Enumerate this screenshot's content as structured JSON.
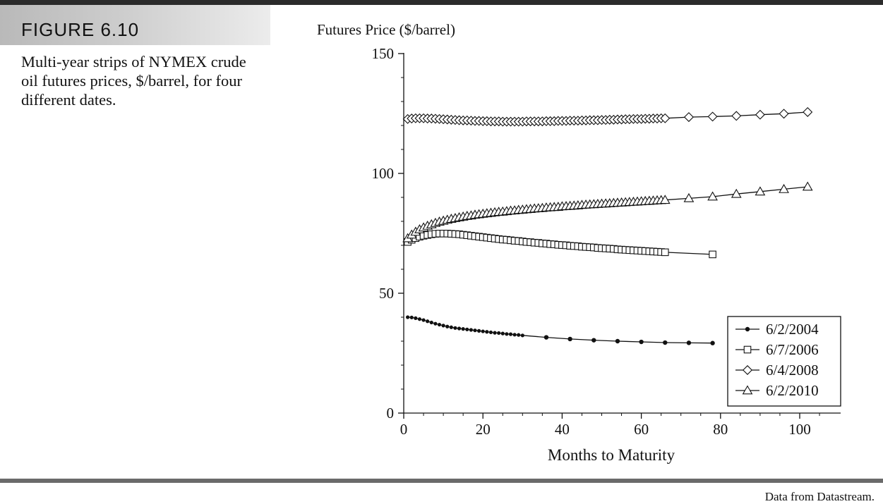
{
  "figure": {
    "label": "FIGURE 6.10",
    "caption": "Multi-year strips of NYMEX crude oil futures prices, $/barrel, for four different dates.",
    "source": "Data from Datastream."
  },
  "chart_data": {
    "type": "line",
    "ylabel": "Futures Price ($/barrel)",
    "xlabel": "Months to Maturity",
    "xlim": [
      0,
      110
    ],
    "ylim": [
      0,
      150
    ],
    "xticks": [
      0,
      20,
      40,
      60,
      80,
      100
    ],
    "yticks": [
      0,
      50,
      100,
      150
    ],
    "grid": false,
    "legend_position": "bottom-right",
    "series": [
      {
        "name": "6/2/2004",
        "marker": "filled-circle",
        "x": [
          1,
          2,
          3,
          4,
          5,
          6,
          7,
          8,
          9,
          10,
          11,
          12,
          13,
          14,
          15,
          16,
          17,
          18,
          19,
          20,
          21,
          22,
          23,
          24,
          25,
          26,
          27,
          28,
          29,
          30,
          36,
          42,
          48,
          54,
          60,
          66,
          72,
          78
        ],
        "y": [
          40.0,
          39.9,
          39.6,
          39.2,
          38.8,
          38.3,
          37.8,
          37.3,
          36.9,
          36.5,
          36.1,
          35.8,
          35.5,
          35.3,
          35.1,
          34.9,
          34.7,
          34.5,
          34.3,
          34.1,
          33.9,
          33.7,
          33.5,
          33.4,
          33.2,
          33.0,
          32.9,
          32.7,
          32.6,
          32.4,
          31.6,
          30.9,
          30.4,
          30.0,
          29.7,
          29.4,
          29.3,
          29.2
        ]
      },
      {
        "name": "6/7/2006",
        "marker": "open-square",
        "x": [
          1,
          2,
          3,
          4,
          5,
          6,
          7,
          8,
          9,
          10,
          11,
          12,
          13,
          14,
          15,
          16,
          17,
          18,
          19,
          20,
          21,
          22,
          23,
          24,
          25,
          26,
          27,
          28,
          29,
          30,
          31,
          32,
          33,
          34,
          35,
          36,
          37,
          38,
          39,
          40,
          41,
          42,
          43,
          44,
          45,
          46,
          47,
          48,
          49,
          50,
          51,
          52,
          53,
          54,
          55,
          56,
          57,
          58,
          59,
          60,
          61,
          62,
          63,
          64,
          65,
          66,
          78
        ],
        "y": [
          71.4,
          72.3,
          73.0,
          73.6,
          74.0,
          74.3,
          74.6,
          74.8,
          74.9,
          74.9,
          74.9,
          74.8,
          74.7,
          74.6,
          74.4,
          74.2,
          74.0,
          73.8,
          73.6,
          73.4,
          73.2,
          73.0,
          72.8,
          72.6,
          72.4,
          72.3,
          72.1,
          71.9,
          71.8,
          71.6,
          71.4,
          71.3,
          71.1,
          71.0,
          70.8,
          70.7,
          70.5,
          70.4,
          70.2,
          70.1,
          70.0,
          69.8,
          69.7,
          69.6,
          69.4,
          69.3,
          69.2,
          69.1,
          68.9,
          68.8,
          68.7,
          68.6,
          68.5,
          68.3,
          68.2,
          68.1,
          68.0,
          67.9,
          67.8,
          67.7,
          67.6,
          67.5,
          67.4,
          67.3,
          67.2,
          67.1,
          66.2
        ]
      },
      {
        "name": "6/4/2008",
        "marker": "open-diamond",
        "x": [
          1,
          2,
          3,
          4,
          5,
          6,
          7,
          8,
          9,
          10,
          11,
          12,
          13,
          14,
          15,
          16,
          17,
          18,
          19,
          20,
          21,
          22,
          23,
          24,
          25,
          26,
          27,
          28,
          29,
          30,
          31,
          32,
          33,
          34,
          35,
          36,
          37,
          38,
          39,
          40,
          41,
          42,
          43,
          44,
          45,
          46,
          47,
          48,
          49,
          50,
          51,
          52,
          53,
          54,
          55,
          56,
          57,
          58,
          59,
          60,
          61,
          62,
          63,
          64,
          65,
          66,
          72,
          78,
          84,
          90,
          96,
          102
        ],
        "y": [
          122.7,
          122.9,
          123.0,
          123.0,
          123.0,
          122.9,
          122.9,
          122.8,
          122.7,
          122.6,
          122.5,
          122.4,
          122.3,
          122.2,
          122.1,
          122.1,
          122.0,
          121.9,
          121.9,
          121.8,
          121.8,
          121.7,
          121.7,
          121.7,
          121.6,
          121.6,
          121.6,
          121.6,
          121.6,
          121.6,
          121.7,
          121.7,
          121.7,
          121.7,
          121.7,
          121.8,
          121.8,
          121.8,
          121.9,
          121.9,
          121.9,
          122.0,
          122.0,
          122.0,
          122.1,
          122.1,
          122.2,
          122.2,
          122.2,
          122.3,
          122.3,
          122.4,
          122.4,
          122.5,
          122.5,
          122.6,
          122.6,
          122.7,
          122.7,
          122.7,
          122.8,
          122.8,
          122.9,
          122.9,
          123.0,
          123.0,
          123.5,
          123.7,
          124.0,
          124.5,
          124.9,
          125.6
        ]
      },
      {
        "name": "6/2/2010",
        "marker": "open-triangle",
        "x": [
          1,
          2,
          3,
          4,
          5,
          6,
          7,
          8,
          9,
          10,
          11,
          12,
          13,
          14,
          15,
          16,
          17,
          18,
          19,
          20,
          21,
          22,
          23,
          24,
          25,
          26,
          27,
          28,
          29,
          30,
          31,
          32,
          33,
          34,
          35,
          36,
          37,
          38,
          39,
          40,
          41,
          42,
          43,
          44,
          45,
          46,
          47,
          48,
          49,
          50,
          51,
          52,
          53,
          54,
          55,
          56,
          57,
          58,
          59,
          60,
          61,
          62,
          63,
          64,
          65,
          66,
          72,
          78,
          84,
          90,
          96,
          102
        ],
        "y": [
          72.9,
          74.4,
          75.6,
          76.6,
          77.4,
          78.1,
          78.7,
          79.3,
          79.8,
          80.2,
          80.6,
          81.0,
          81.3,
          81.6,
          81.9,
          82.2,
          82.4,
          82.7,
          82.9,
          83.1,
          83.3,
          83.5,
          83.7,
          83.9,
          84.0,
          84.2,
          84.4,
          84.5,
          84.7,
          84.8,
          85.0,
          85.1,
          85.3,
          85.4,
          85.5,
          85.7,
          85.8,
          85.9,
          86.0,
          86.2,
          86.3,
          86.4,
          86.5,
          86.6,
          86.8,
          86.9,
          87.0,
          87.1,
          87.2,
          87.3,
          87.4,
          87.5,
          87.6,
          87.7,
          87.8,
          87.9,
          88.0,
          88.1,
          88.2,
          88.3,
          88.4,
          88.5,
          88.6,
          88.7,
          88.8,
          88.9,
          89.6,
          90.3,
          91.4,
          92.4,
          93.4,
          94.4
        ]
      }
    ]
  }
}
